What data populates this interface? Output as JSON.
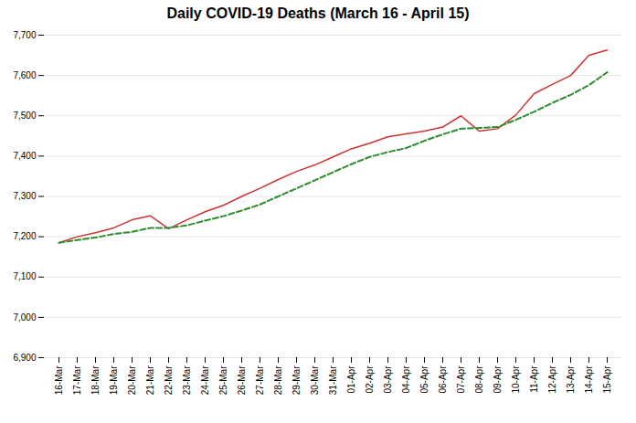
{
  "chart_data": {
    "type": "line",
    "title": "Daily COVID-19 Deaths (March 16 - April 15)",
    "categories": [
      "16-Mar",
      "17-Mar",
      "18-Mar",
      "19-Mar",
      "20-Mar",
      "21-Mar",
      "22-Mar",
      "23-Mar",
      "24-Mar",
      "25-Mar",
      "26-Mar",
      "27-Mar",
      "28-Mar",
      "29-Mar",
      "30-Mar",
      "31-Mar",
      "01-Apr",
      "02-Apr",
      "03-Apr",
      "04-Apr",
      "05-Apr",
      "06-Apr",
      "07-Apr",
      "08-Apr",
      "09-Apr",
      "10-Apr",
      "11-Apr",
      "12-Apr",
      "13-Apr",
      "14-Apr",
      "15-Apr"
    ],
    "series": [
      {
        "color": "#cd3333",
        "line_style": "solid",
        "values": [
          7185,
          7200,
          7210,
          7222,
          7242,
          7252,
          7220,
          7242,
          7262,
          7278,
          7300,
          7320,
          7342,
          7362,
          7378,
          7398,
          7418,
          7432,
          7448,
          7455,
          7462,
          7472,
          7500,
          7462,
          7468,
          7502,
          7555,
          7578,
          7600,
          7650,
          7663
        ]
      },
      {
        "color": "#2e8b2e",
        "line_style": "dashed",
        "values": [
          7185,
          7192,
          7198,
          7207,
          7212,
          7222,
          7222,
          7228,
          7240,
          7251,
          7265,
          7280,
          7300,
          7320,
          7340,
          7360,
          7380,
          7398,
          7410,
          7420,
          7438,
          7454,
          7468,
          7470,
          7472,
          7490,
          7510,
          7532,
          7552,
          7576,
          7608
        ]
      }
    ],
    "ylim": [
      6900,
      7700
    ],
    "yticks": [
      {
        "value": 6900,
        "label": "6,900"
      },
      {
        "value": 7000,
        "label": "7,000"
      },
      {
        "value": 7100,
        "label": "7,100"
      },
      {
        "value": 7200,
        "label": "7,200"
      },
      {
        "value": 7300,
        "label": "7,300"
      },
      {
        "value": 7400,
        "label": "7,400"
      },
      {
        "value": 7500,
        "label": "7,500"
      },
      {
        "value": 7600,
        "label": "7,600"
      },
      {
        "value": 7700,
        "label": "7,700"
      }
    ],
    "grid": true
  }
}
